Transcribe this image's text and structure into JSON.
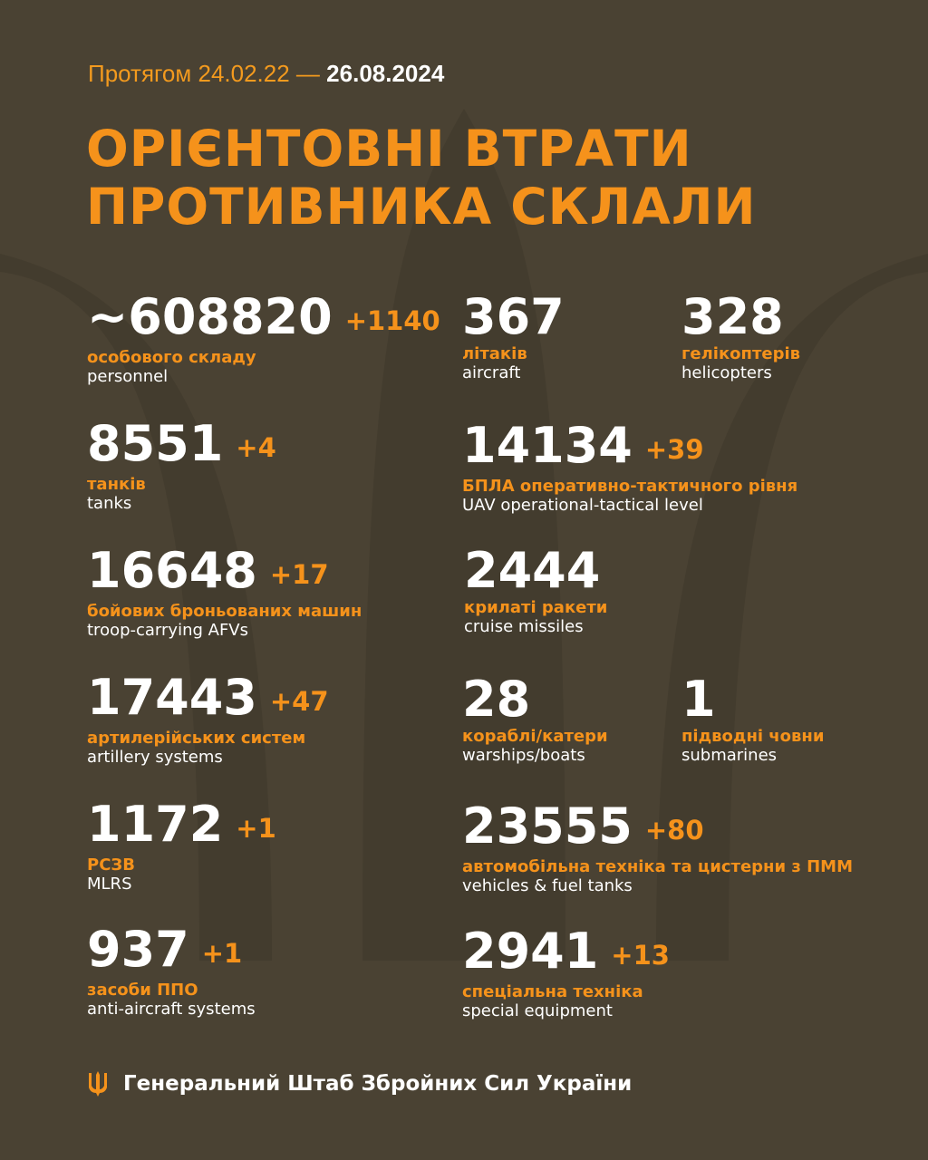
{
  "header": {
    "period_prefix": "Протягом 24.02.22 —",
    "period_end": "26.08.2024",
    "title_line1": "ОРІЄНТОВНІ ВТРАТИ",
    "title_line2": "ПРОТИВНИКА СКЛАЛИ"
  },
  "colors": {
    "background": "#4a4233",
    "accent": "#f5921b",
    "text": "#ffffff"
  },
  "items": [
    {
      "id": "personnel",
      "value": "~608820",
      "delta": "+1140",
      "ua": "особового складу",
      "en": "personnel"
    },
    {
      "id": "aircraft",
      "value": "367",
      "delta": "",
      "ua": "літаків",
      "en": "aircraft"
    },
    {
      "id": "helicopters",
      "value": "328",
      "delta": "",
      "ua": "гелікоптерів",
      "en": "helicopters"
    },
    {
      "id": "tanks",
      "value": "8551",
      "delta": "+4",
      "ua": "танків",
      "en": "tanks"
    },
    {
      "id": "uav",
      "value": "14134",
      "delta": "+39",
      "ua": "БПЛА оперативно-тактичного рівня",
      "en": "UAV operational-tactical level"
    },
    {
      "id": "afv",
      "value": "16648",
      "delta": "+17",
      "ua": "бойових броньованих машин",
      "en": "troop-carrying AFVs"
    },
    {
      "id": "cruise-missiles",
      "value": "2444",
      "delta": "",
      "ua": "крилаті ракети",
      "en": "cruise missiles"
    },
    {
      "id": "artillery",
      "value": "17443",
      "delta": "+47",
      "ua": "артилерійських систем",
      "en": "artillery systems"
    },
    {
      "id": "warships",
      "value": "28",
      "delta": "",
      "ua": "кораблі/катери",
      "en": "warships/boats"
    },
    {
      "id": "submarines",
      "value": "1",
      "delta": "",
      "ua": "підводні човни",
      "en": "submarines"
    },
    {
      "id": "mlrs",
      "value": "1172",
      "delta": "+1",
      "ua": "РСЗВ",
      "en": "MLRS"
    },
    {
      "id": "vehicles",
      "value": "23555",
      "delta": "+80",
      "ua": "автомобільна техніка та цистерни з ПММ",
      "en": "vehicles & fuel tanks"
    },
    {
      "id": "anti-aircraft",
      "value": "937",
      "delta": "+1",
      "ua": "засоби ППО",
      "en": "anti-aircraft systems"
    },
    {
      "id": "special-equipment",
      "value": "2941",
      "delta": "+13",
      "ua": "спеціальна техніка",
      "en": "special equipment"
    }
  ],
  "footer": {
    "icon": "trident-icon",
    "org": "Генеральний Штаб Збройних Сил України"
  }
}
